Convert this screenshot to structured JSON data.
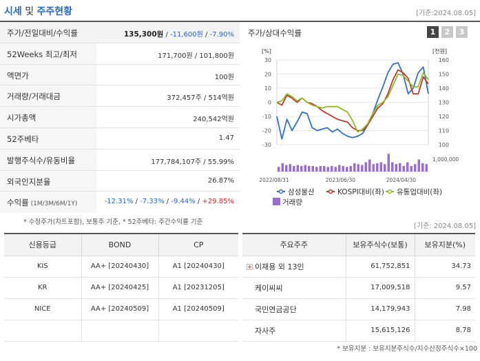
{
  "header": {
    "title_a": "시세",
    "title_sep": " 및 ",
    "title_b": "주주현황",
    "base_date": "[기준:2024.08.05]"
  },
  "summary": [
    {
      "label": "주가/전일대비/수익률",
      "v1": "135,300원",
      "v2": " / ",
      "v3": "-11,600원",
      "v4": " / ",
      "v5": "-7.90%"
    },
    {
      "label": "52Weeks 최고/최저",
      "value": "171,700원 / 101,800원"
    },
    {
      "label": "액면가",
      "value": "100원"
    },
    {
      "label": "거래량/거래대금",
      "value": "372,457주 / 514억원"
    },
    {
      "label": "시가총액",
      "value": "240,542억원"
    },
    {
      "label": "52주베타",
      "value": "1.47"
    },
    {
      "label": "발행주식수/유동비율",
      "value": "177,784,107주 / 55.99%"
    },
    {
      "label": "외국인지분율",
      "value": "26.87%"
    },
    {
      "label": "수익률",
      "label_small": " (1M/3M/6M/1Y)",
      "r1": "-12.31%",
      "r2": "-7.33%",
      "r3": "-9.44%",
      "r4": "+29.85%",
      "sep": "/ "
    }
  ],
  "footnote": "* 수정주가(차트포함), 보통주 기준, * 52주베타: 주간수익률 기준",
  "base_date2": "[기준: 2024.08.05]",
  "chart_panel": {
    "title": "주가/상대수익률",
    "pages": [
      "1",
      "2",
      "3"
    ],
    "active_page": 1
  },
  "chart_data": {
    "type": "line",
    "left_unit": "[%]",
    "right_unit": "[천원]",
    "left_ticks": [
      "30",
      "20",
      "10",
      "0",
      "-10",
      "-20",
      "-30"
    ],
    "right_ticks": [
      "160",
      "150",
      "140",
      "130",
      "120",
      "110",
      "100"
    ],
    "volume_tick": "1,000,000",
    "x_ticks": [
      "2022/08/31",
      "2023/06/30",
      "2024/04/30"
    ],
    "ylim_left": [
      -30,
      30
    ],
    "ylim_right": [
      100,
      160
    ],
    "series": [
      {
        "name": "삼성물산",
        "axis": "right",
        "color": "#2f6fc9",
        "values": [
          120,
          104,
          118,
          110,
          116,
          123,
          122,
          112,
          110,
          111,
          112,
          109,
          111,
          108,
          106,
          105,
          106,
          108,
          114,
          122,
          132,
          141,
          151,
          157,
          158,
          150,
          136,
          140,
          151,
          155,
          136
        ]
      },
      {
        "name": "KOSPI대비(좌)",
        "axis": "left",
        "color": "#c0392b",
        "values": [
          0,
          -2,
          5,
          3,
          0,
          3,
          0,
          -1,
          -3,
          -6,
          -8,
          -10,
          -12,
          -13,
          -14,
          -18,
          -20,
          -20,
          -16,
          -10,
          -4,
          -1,
          6,
          16,
          23,
          21,
          17,
          6,
          6,
          18,
          13
        ]
      },
      {
        "name": "유통업대비(좌)",
        "axis": "left",
        "color": "#8dbb2a",
        "values": [
          0,
          1,
          6,
          4,
          1,
          3,
          0,
          -2,
          -3,
          -4,
          -3,
          -3,
          -3,
          -5,
          -7,
          -13,
          -21,
          -19,
          -15,
          -8,
          -2,
          0,
          4,
          12,
          20,
          19,
          15,
          11,
          11,
          21,
          16
        ]
      }
    ],
    "volume": {
      "name": "거래량",
      "color": "#9b6cd1",
      "values": [
        0.25,
        0.45,
        0.35,
        0.4,
        0.3,
        0.35,
        0.3,
        0.35,
        0.3,
        0.3,
        0.25,
        0.3,
        0.3,
        0.25,
        0.3,
        0.25,
        0.35,
        0.3,
        0.25,
        0.3,
        0.45,
        0.4,
        0.35,
        0.5,
        0.65,
        0.4,
        0.45,
        0.5,
        0.4,
        0.95,
        0.5,
        0.4,
        0.45,
        0.3,
        0.5,
        0.3,
        0.4,
        0.65,
        0.45,
        0.4
      ]
    }
  },
  "ratings": {
    "headers": [
      "신용등급",
      "BOND",
      "CP"
    ],
    "rows": [
      {
        "agency": "KIS",
        "bond": "AA+ [20240430]",
        "cp": "A1 [20240430]"
      },
      {
        "agency": "KR",
        "bond": "AA+ [20240425]",
        "cp": "A1 [20231205]"
      },
      {
        "agency": "NICE",
        "bond": "AA+ [20240509]",
        "cp": "A1 [20240509]"
      }
    ]
  },
  "shareholders": {
    "headers": [
      "주요주주",
      "보유주식수(보통)",
      "보유지분(%)"
    ],
    "rows": [
      {
        "name": "이재용 외 13인",
        "shares": "61,752,851",
        "pct": "34.73"
      },
      {
        "name": "케이씨씨",
        "shares": "17,009,518",
        "pct": "9.57"
      },
      {
        "name": "국민연금공단",
        "shares": "14,179,943",
        "pct": "7.98"
      },
      {
        "name": "자사주",
        "shares": "15,615,126",
        "pct": "8.78"
      }
    ],
    "note": "* 보유지분 : 보유지분주식수/지수산정주식수×100"
  }
}
